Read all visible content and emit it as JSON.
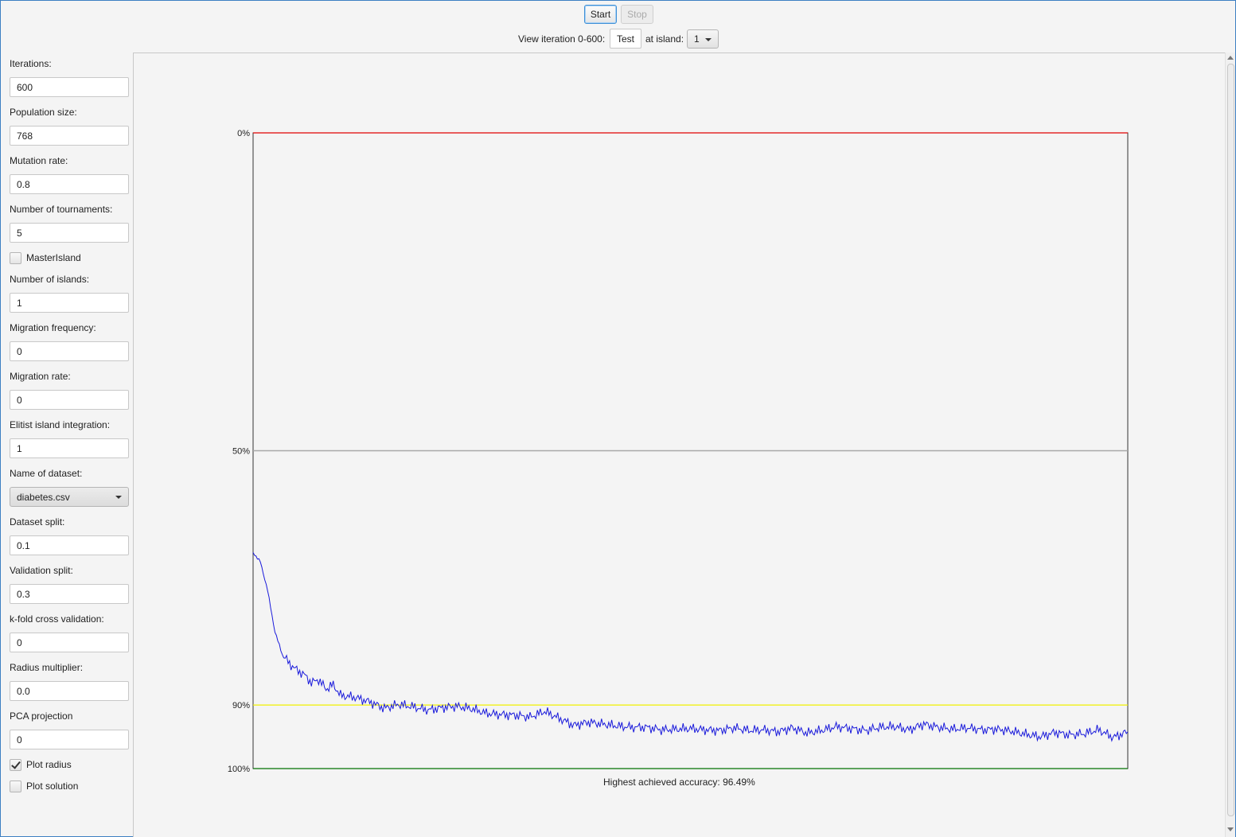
{
  "toolbar": {
    "start_label": "Start",
    "stop_label": "Stop",
    "view_label": "View iteration 0-600:",
    "view_input_value": "Test",
    "island_label": "at island:",
    "island_selected": "1"
  },
  "sidebar": {
    "iterations_label": "Iterations:",
    "iterations_value": "600",
    "population_label": "Population size:",
    "population_value": "768",
    "mutation_label": "Mutation rate:",
    "mutation_value": "0.8",
    "tournaments_label": "Number of tournaments:",
    "tournaments_value": "5",
    "master_island_label": "MasterIsland",
    "master_island_checked": false,
    "islands_label": "Number of islands:",
    "islands_value": "1",
    "migration_freq_label": "Migration frequency:",
    "migration_freq_value": "0",
    "migration_rate_label": "Migration rate:",
    "migration_rate_value": "0",
    "elitist_label": "Elitist island integration:",
    "elitist_value": "1",
    "dataset_label": "Name of dataset:",
    "dataset_value": "diabetes.csv",
    "dataset_split_label": "Dataset split:",
    "dataset_split_value": "0.1",
    "validation_split_label": "Validation split:",
    "validation_split_value": "0.3",
    "kfold_label": "k-fold cross validation:",
    "kfold_value": "0",
    "radius_label": "Radius multiplier:",
    "radius_value": "0.0",
    "pca_label": "PCA projection",
    "pca_value": "0",
    "plot_radius_label": "Plot radius",
    "plot_radius_checked": true,
    "plot_solution_label": "Plot solution",
    "plot_solution_checked": false
  },
  "chart_data": {
    "type": "line",
    "title": "",
    "xlabel": "",
    "ylabel": "",
    "x_range": [
      0,
      600
    ],
    "y_axis_inverted": true,
    "ylim": [
      0,
      100
    ],
    "y_ticks": [
      {
        "value": 0,
        "label": "0%"
      },
      {
        "value": 50,
        "label": "50%"
      },
      {
        "value": 90,
        "label": "90%"
      },
      {
        "value": 100,
        "label": "100%"
      }
    ],
    "reference_lines": [
      {
        "value": 0,
        "color": "#e00000"
      },
      {
        "value": 50,
        "color": "#a8a8a8"
      },
      {
        "value": 90,
        "color": "#f0f000"
      },
      {
        "value": 100,
        "color": "#007000"
      }
    ],
    "series": [
      {
        "color": "#1a1adb",
        "x": [
          0,
          5,
          10,
          15,
          20,
          25,
          30,
          35,
          40,
          45,
          50,
          55,
          60,
          70,
          80,
          90,
          100,
          110,
          120,
          130,
          140,
          150,
          160,
          170,
          180,
          190,
          200,
          210,
          220,
          230,
          240,
          250,
          260,
          270,
          280,
          290,
          300,
          310,
          320,
          330,
          340,
          350,
          360,
          370,
          380,
          390,
          400,
          410,
          420,
          430,
          440,
          450,
          460,
          470,
          480,
          490,
          500,
          510,
          520,
          530,
          540,
          550,
          560,
          570,
          580,
          590,
          600
        ],
        "values": [
          66.0,
          67.5,
          72.0,
          78.5,
          82.0,
          83.5,
          84.5,
          85.2,
          86.5,
          86.0,
          87.5,
          86.8,
          88.5,
          88.8,
          89.5,
          90.5,
          89.9,
          90.3,
          90.8,
          90.4,
          90.2,
          90.6,
          91.3,
          91.5,
          91.6,
          91.9,
          91.0,
          92.1,
          93.2,
          92.7,
          93.0,
          93.3,
          93.5,
          93.5,
          93.9,
          93.8,
          93.7,
          93.9,
          94.0,
          93.6,
          94.0,
          93.9,
          94.2,
          93.6,
          94.4,
          94.0,
          93.4,
          93.7,
          94.0,
          93.5,
          93.4,
          93.9,
          93.0,
          93.5,
          93.8,
          93.6,
          93.9,
          93.8,
          94.1,
          94.6,
          95.0,
          94.3,
          94.7,
          94.5,
          93.9,
          95.1,
          94.2
        ]
      }
    ],
    "annotation": "Highest achieved accuracy: 96.49%"
  }
}
